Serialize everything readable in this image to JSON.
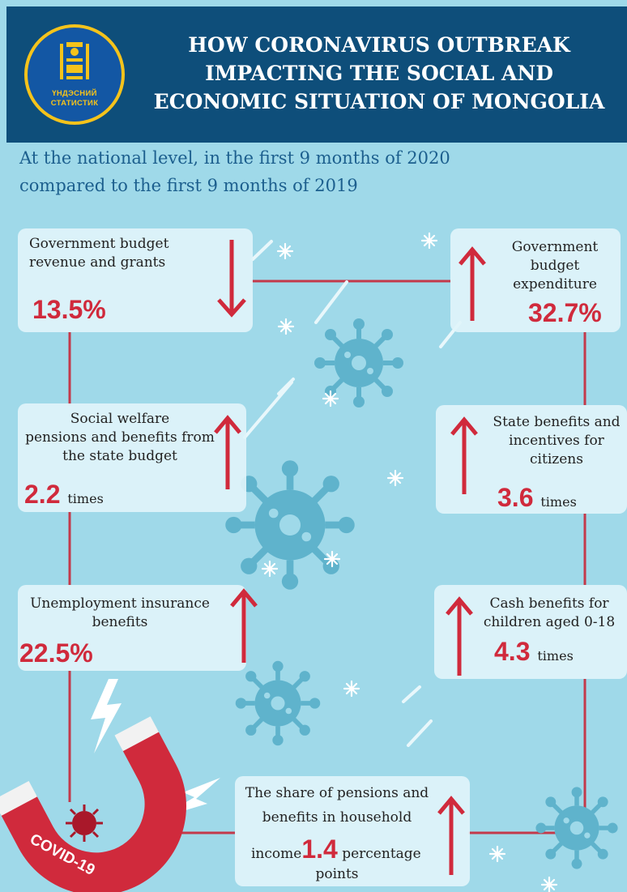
{
  "header": {
    "logo_text_line1": "ҮНДЭСНИЙ",
    "logo_text_line2": "СТАТИСТИК",
    "title_line1": "HOW CORONAVIRUS OUTBREAK",
    "title_line2": "IMPACTING THE SOCIAL AND",
    "title_line3": "ECONOMIC SITUATION OF MONGOLIA"
  },
  "subtitle": {
    "line1": "At the national level, in the first 9 months of 2020",
    "line2": "compared to the first 9 months of 2019"
  },
  "indicators": [
    {
      "label_line1": "Government budget",
      "label_line2": "revenue and grants",
      "value": "13.5%",
      "direction": "down"
    },
    {
      "label_line1": "Government",
      "label_line2": "budget",
      "label_line3": "expenditure",
      "value": "32.7%",
      "direction": "up"
    },
    {
      "label_line1": "Social welfare",
      "label_line2": "pensions and benefits from",
      "label_line3": "the state budget",
      "value": "2.2",
      "unit": "times",
      "direction": "up"
    },
    {
      "label_line1": "State benefits and",
      "label_line2": "incentives for",
      "label_line3": "citizens",
      "value": "3.6",
      "unit": "times",
      "direction": "up"
    },
    {
      "label_line1": "Unemployment insurance",
      "label_line2": "benefits",
      "value": "22.5%",
      "direction": "up"
    },
    {
      "label_line1": "Cash benefits for",
      "label_line2": "children aged 0-18",
      "value": "4.3",
      "unit": "times",
      "direction": "up"
    },
    {
      "label_line1": "The share of pensions and",
      "label_line2": "benefits in household",
      "label_prefix": "income",
      "value": "1.4",
      "unit": "percentage",
      "label_line4": "points",
      "direction": "up"
    }
  ],
  "magnet_label": "COVID-19",
  "colors": {
    "header_bg": "#0e4e7a",
    "background": "#9fd9e9",
    "accent_red": "#d02a3c",
    "subtitle_text": "#1c5f8e",
    "virus": "#5fb3cc"
  }
}
